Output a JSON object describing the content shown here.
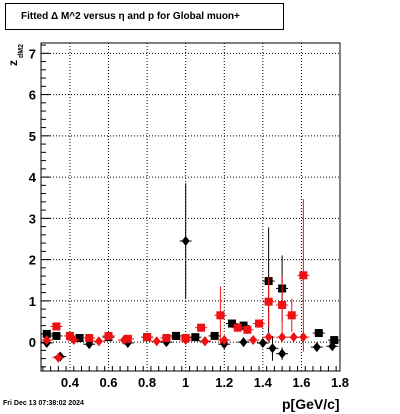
{
  "title": "Fitted Δ M^2 versus η and p for Global muon+",
  "timestamp": "Fri Dec 13 07:38:02 2024",
  "chart_data": {
    "type": "scatter",
    "title": "Fitted Δ M^2 versus η and p for Global muon+",
    "xlabel": "p[GeV/c]",
    "ylabel": "z",
    "ylabel_sub": "dM2",
    "xlim": [
      0.25,
      1.8
    ],
    "ylim": [
      -0.7,
      7.25
    ],
    "xticks": [
      0.4,
      0.6,
      0.8,
      1.0,
      1.2,
      1.4,
      1.6,
      1.8
    ],
    "xtick_labels": [
      "0.4",
      "0.6",
      "0.8",
      "1",
      "1.2",
      "1.4",
      "1.6",
      "1.8"
    ],
    "yticks": [
      0,
      1,
      2,
      3,
      4,
      5,
      6,
      7
    ],
    "ytick_labels": [
      "0",
      "1",
      "2",
      "3",
      "4",
      "5",
      "6",
      "7"
    ],
    "grid": true,
    "series": [
      {
        "color": "#000000",
        "marker": "diamond",
        "points": [
          {
            "x": 1.0,
            "y": 2.45,
            "err": 1.4
          },
          {
            "x": 1.45,
            "y": -0.15,
            "err": 0.3
          },
          {
            "x": 1.5,
            "y": -0.28,
            "err": 0.15
          },
          {
            "x": 1.68,
            "y": -0.12,
            "err": 0.1
          },
          {
            "x": 1.76,
            "y": -0.1,
            "err": 0.1
          },
          {
            "x": 1.2,
            "y": -0.05,
            "err": 0.1
          },
          {
            "x": 1.3,
            "y": 0.0,
            "err": 0.1
          },
          {
            "x": 0.35,
            "y": -0.35,
            "err": 0.05
          },
          {
            "x": 0.28,
            "y": -0.02,
            "err": 0.05
          },
          {
            "x": 0.5,
            "y": -0.05,
            "err": 0.05
          },
          {
            "x": 0.7,
            "y": -0.02,
            "err": 0.05
          },
          {
            "x": 0.9,
            "y": 0.0,
            "err": 0.05
          },
          {
            "x": 1.1,
            "y": 0.02,
            "err": 0.05
          },
          {
            "x": 1.4,
            "y": -0.02,
            "err": 0.1
          }
        ]
      },
      {
        "color": "#000000",
        "marker": "square",
        "points": [
          {
            "x": 1.43,
            "y": 1.48,
            "err": 1.3
          },
          {
            "x": 1.5,
            "y": 1.3,
            "err": 0.8
          },
          {
            "x": 1.69,
            "y": 0.22,
            "err": 0.05
          },
          {
            "x": 1.77,
            "y": 0.05,
            "err": 0.05
          },
          {
            "x": 1.24,
            "y": 0.45,
            "err": 0.1
          },
          {
            "x": 1.3,
            "y": 0.4,
            "err": 0.1
          },
          {
            "x": 0.28,
            "y": 0.2,
            "err": 0.05
          },
          {
            "x": 0.33,
            "y": 0.15,
            "err": 0.05
          },
          {
            "x": 0.45,
            "y": 0.1,
            "err": 0.05
          },
          {
            "x": 0.6,
            "y": 0.12,
            "err": 0.05
          },
          {
            "x": 0.8,
            "y": 0.12,
            "err": 0.05
          },
          {
            "x": 0.95,
            "y": 0.15,
            "err": 0.05
          },
          {
            "x": 1.05,
            "y": 0.12,
            "err": 0.05
          },
          {
            "x": 1.15,
            "y": 0.15,
            "err": 0.05
          }
        ]
      },
      {
        "color": "#ee1111",
        "marker": "diamond",
        "points": [
          {
            "x": 0.34,
            "y": -0.38,
            "err": 0.05
          },
          {
            "x": 1.43,
            "y": 0.12,
            "err": 0.1
          },
          {
            "x": 1.5,
            "y": 0.12,
            "err": 0.1
          },
          {
            "x": 1.56,
            "y": 0.12,
            "err": 0.05
          },
          {
            "x": 1.61,
            "y": 0.12,
            "err": 0.05
          },
          {
            "x": 0.28,
            "y": 0.05,
            "err": 0.05
          },
          {
            "x": 0.42,
            "y": 0.05,
            "err": 0.05
          },
          {
            "x": 0.55,
            "y": 0.02,
            "err": 0.05
          },
          {
            "x": 0.68,
            "y": 0.05,
            "err": 0.05
          },
          {
            "x": 0.85,
            "y": 0.02,
            "err": 0.05
          },
          {
            "x": 1.0,
            "y": 0.05,
            "err": 0.05
          },
          {
            "x": 1.1,
            "y": 0.02,
            "err": 0.05
          },
          {
            "x": 1.2,
            "y": 0.05,
            "err": 0.05
          },
          {
            "x": 1.35,
            "y": 0.05,
            "err": 0.05
          }
        ]
      },
      {
        "color": "#ee1111",
        "marker": "square",
        "points": [
          {
            "x": 1.61,
            "y": 1.62,
            "err": 1.85
          },
          {
            "x": 1.43,
            "y": 0.98,
            "err": 0.6
          },
          {
            "x": 1.5,
            "y": 0.9,
            "err": 0.7
          },
          {
            "x": 1.55,
            "y": 0.65,
            "err": 0.4
          },
          {
            "x": 1.18,
            "y": 0.65,
            "err": 0.7
          },
          {
            "x": 1.27,
            "y": 0.35,
            "err": 0.1
          },
          {
            "x": 1.32,
            "y": 0.3,
            "err": 0.1
          },
          {
            "x": 1.38,
            "y": 0.45,
            "err": 0.1
          },
          {
            "x": 1.08,
            "y": 0.35,
            "err": 0.1
          },
          {
            "x": 0.33,
            "y": 0.38,
            "err": 0.05
          },
          {
            "x": 0.4,
            "y": 0.15,
            "err": 0.05
          },
          {
            "x": 0.5,
            "y": 0.1,
            "err": 0.05
          },
          {
            "x": 0.6,
            "y": 0.15,
            "err": 0.05
          },
          {
            "x": 0.7,
            "y": 0.08,
            "err": 0.05
          },
          {
            "x": 0.8,
            "y": 0.12,
            "err": 0.05
          },
          {
            "x": 0.9,
            "y": 0.1,
            "err": 0.05
          },
          {
            "x": 1.0,
            "y": 0.1,
            "err": 0.05
          }
        ]
      }
    ]
  }
}
